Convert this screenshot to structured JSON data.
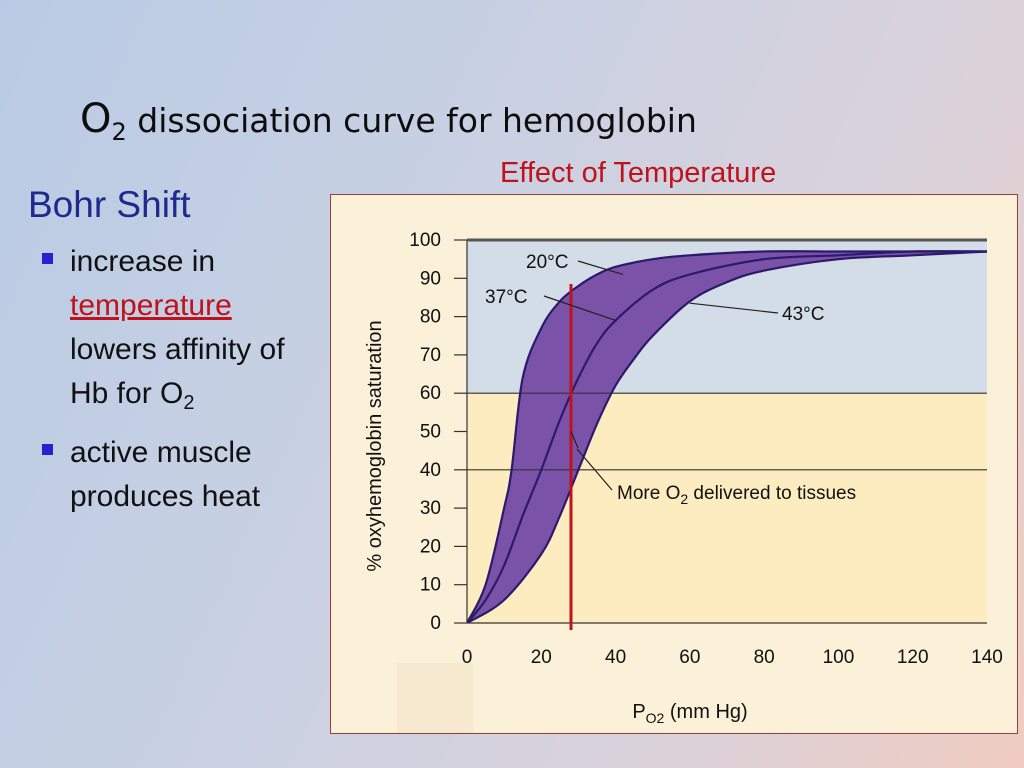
{
  "slide": {
    "title_main": "O",
    "title_sub": "2",
    "title_rest": " dissociation curve for hemoglobin",
    "subtitle": "Effect of Temperature",
    "section_heading": "Bohr Shift",
    "bullets": [
      {
        "line1": "increase in",
        "line2": "temperature",
        "line3": "lowers affinity of",
        "line4_main": "Hb for O",
        "line4_sub": "2"
      },
      {
        "line1": "active muscle",
        "line2": "produces heat"
      }
    ]
  },
  "colors": {
    "subtitle": "#c0121a",
    "heading": "#1c2b8c",
    "bullet": "#2323cf",
    "band_fill": "#7a52a8",
    "curve": "#2c1a6b",
    "marker_line": "#c0121a",
    "plot_upper_bg": "#d2dde7",
    "plot_lower_bg": "#fcecc0"
  },
  "chart_data": {
    "type": "line",
    "title": "Effect of Temperature",
    "xlabel_main": "P",
    "xlabel_sub": "O2",
    "xlabel_rest": " (mm Hg)",
    "ylabel": "% oxyhemoglobin saturation",
    "xlim": [
      0,
      140
    ],
    "ylim": [
      0,
      100
    ],
    "xticks": [
      "0",
      "20",
      "40",
      "60",
      "80",
      "100",
      "120",
      "140"
    ],
    "yticks": [
      "0",
      "10",
      "20",
      "30",
      "40",
      "50",
      "60",
      "70",
      "80",
      "90",
      "100"
    ],
    "series": [
      {
        "name": "20°C",
        "x": [
          0,
          5,
          10,
          12,
          15,
          20,
          25,
          30,
          35,
          40,
          50,
          60,
          80,
          100,
          120,
          140
        ],
        "y": [
          0,
          10,
          30,
          40,
          64,
          77,
          84,
          88,
          91,
          93,
          95,
          96,
          97,
          97,
          97,
          97
        ]
      },
      {
        "name": "37°C",
        "x": [
          0,
          5,
          10,
          15,
          20,
          25,
          30,
          35,
          40,
          50,
          60,
          80,
          100,
          120,
          140
        ],
        "y": [
          0,
          6,
          15,
          28,
          40,
          53,
          64,
          73,
          79,
          87,
          91,
          95,
          96,
          97,
          97
        ]
      },
      {
        "name": "43°C",
        "x": [
          0,
          10,
          20,
          25,
          30,
          35,
          40,
          45,
          50,
          60,
          70,
          80,
          100,
          120,
          140
        ],
        "y": [
          0,
          6,
          18,
          28,
          40,
          52,
          62,
          69,
          75,
          84,
          89,
          92,
          95,
          96,
          97
        ]
      }
    ],
    "reference_lines_y": [
      60,
      40
    ],
    "marker_x": 28,
    "labels": {
      "t20": "20°C",
      "t37": "37°C",
      "t43": "43°C",
      "annotation_main": "More O",
      "annotation_sub": "2",
      "annotation_rest": " delivered to tissues"
    },
    "grid": false
  }
}
